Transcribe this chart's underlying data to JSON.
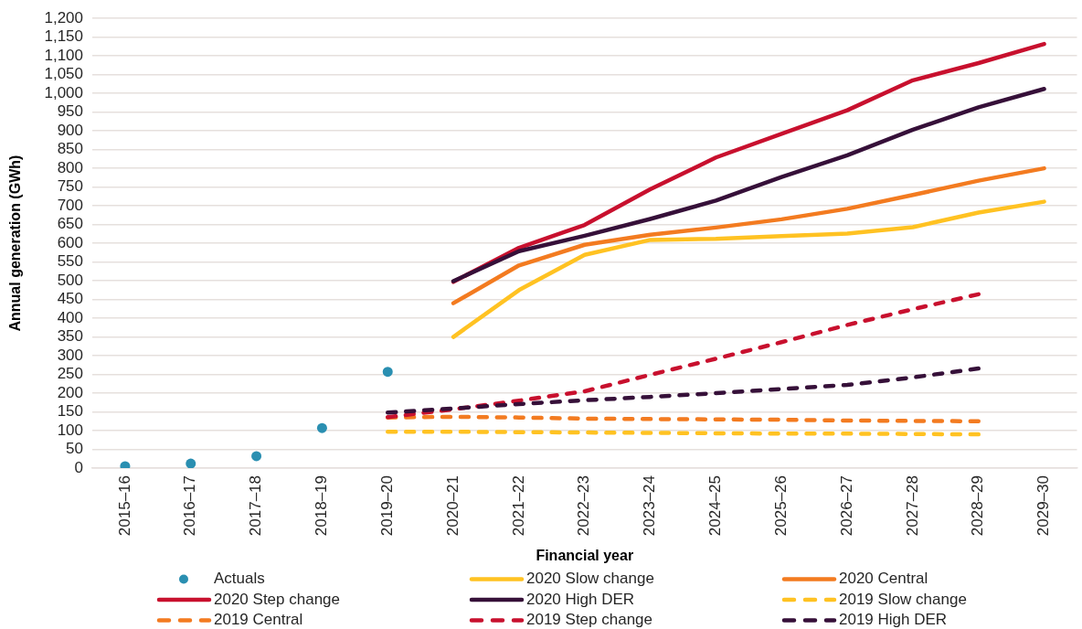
{
  "chart_data": {
    "type": "line",
    "xlabel": "Financial year",
    "ylabel": "Annual generation (GWh)",
    "categories": [
      "2015–16",
      "2016–17",
      "2017–18",
      "2018–19",
      "2019–20",
      "2020–21",
      "2021–22",
      "2022–23",
      "2023–24",
      "2024–25",
      "2025–26",
      "2026–27",
      "2027–28",
      "2028–29",
      "2029–30"
    ],
    "series": [
      {
        "name": "Actuals",
        "type": "scatter",
        "marker": "circle",
        "color": "#2a8fb1",
        "values": [
          5,
          12,
          32,
          107,
          257,
          null,
          null,
          null,
          null,
          null,
          null,
          null,
          null,
          null,
          null
        ]
      },
      {
        "name": "2020 Slow change",
        "color": "#ffc222",
        "line_style": "solid",
        "values": [
          null,
          null,
          null,
          null,
          null,
          350,
          475,
          569,
          609,
          612,
          619,
          626,
          643,
          682,
          711
        ]
      },
      {
        "name": "2020 Central",
        "color": "#f37b20",
        "line_style": "solid",
        "values": [
          null,
          null,
          null,
          null,
          null,
          440,
          541,
          596,
          623,
          642,
          664,
          692,
          729,
          767,
          800
        ]
      },
      {
        "name": "2020 Step change",
        "color": "#c8102e",
        "line_style": "solid",
        "values": [
          null,
          null,
          null,
          null,
          null,
          497,
          588,
          649,
          744,
          829,
          892,
          955,
          1035,
          1081,
          1132
        ]
      },
      {
        "name": "2020 High DER",
        "color": "#361039",
        "line_style": "solid",
        "values": [
          null,
          null,
          null,
          null,
          null,
          499,
          579,
          620,
          665,
          714,
          777,
          835,
          903,
          963,
          1012
        ]
      },
      {
        "name": "2019 Slow change",
        "color": "#ffc222",
        "line_style": "dashed",
        "values": [
          null,
          null,
          null,
          null,
          97,
          97,
          96,
          95,
          94,
          93,
          92,
          92,
          91,
          90,
          null
        ]
      },
      {
        "name": "2019 Central",
        "color": "#f37b20",
        "line_style": "dashed",
        "values": [
          null,
          null,
          null,
          null,
          135,
          137,
          135,
          132,
          131,
          130,
          129,
          127,
          126,
          125,
          null
        ]
      },
      {
        "name": "2019 Step change",
        "color": "#c8102e",
        "line_style": "dashed",
        "values": [
          null,
          null,
          null,
          null,
          136,
          157,
          180,
          205,
          249,
          292,
          336,
          382,
          424,
          464,
          null
        ]
      },
      {
        "name": "2019 High DER",
        "color": "#361039",
        "line_style": "dashed",
        "values": [
          null,
          null,
          null,
          null,
          148,
          159,
          171,
          181,
          190,
          200,
          211,
          222,
          242,
          266,
          null
        ]
      }
    ],
    "ylim": [
      0,
      1200
    ],
    "yticks": [
      0,
      50,
      100,
      150,
      200,
      250,
      300,
      350,
      400,
      450,
      500,
      550,
      600,
      650,
      700,
      750,
      800,
      850,
      900,
      950,
      {
        "value": 1000,
        "label": "1,000"
      },
      {
        "value": 1050,
        "label": "1,050"
      },
      {
        "value": 1100,
        "label": "1,100"
      },
      {
        "value": 1150,
        "label": "1,150"
      },
      {
        "value": 1200,
        "label": "1,200"
      }
    ],
    "grid": "y",
    "legend": "bottom"
  }
}
